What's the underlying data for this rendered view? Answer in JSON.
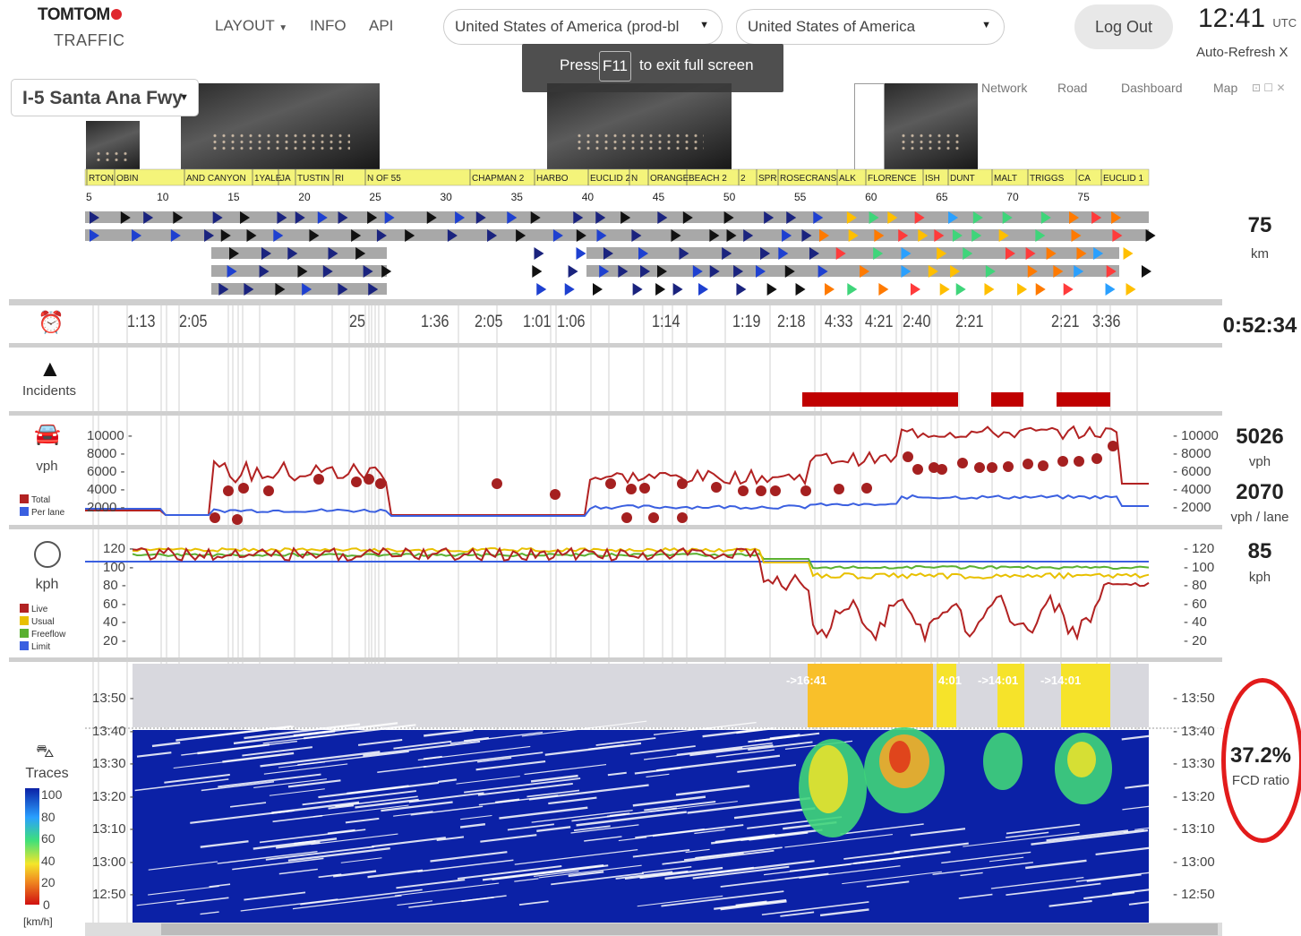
{
  "header": {
    "logo_brand": "TOMTOM",
    "logo_product": "TRAFFIC",
    "nav": {
      "layout": "LAYOUT",
      "info": "INFO",
      "api": "API"
    },
    "dataset_select": "United States of America (prod-bl",
    "region_select": "United States of America",
    "logout": "Log Out",
    "clock_time": "12:41",
    "clock_zone": "UTC",
    "auto_refresh": "Auto-Refresh X"
  },
  "toast": {
    "press": "Press",
    "key": "F11",
    "message": "to exit full screen"
  },
  "road_select": "I-5 Santa Ana Fwy",
  "view_tabs": [
    "Network",
    "Road",
    "Dashboard",
    "Map"
  ],
  "road_panel": {
    "length_value": "75",
    "length_unit": "km",
    "segments": [
      "RTON",
      "OBIN",
      "AND CANYON",
      "1YALE",
      "JA",
      "TUSTIN",
      "RI",
      "N OF 55",
      "CHAPMAN 2",
      "HARBO",
      "EUCLID 2",
      "N",
      "ORANGE",
      "BEACH 2",
      "2",
      "SPR",
      "ROSECRANS",
      "ALK",
      "FLORENCE",
      "ISH",
      "DUNT",
      "MALT",
      "TRIGGS",
      "CA",
      "EUCLID 1"
    ],
    "km_ticks": [
      "5",
      "10",
      "15",
      "20",
      "25",
      "30",
      "35",
      "40",
      "45",
      "50",
      "55",
      "60",
      "65",
      "70",
      "75"
    ]
  },
  "duration_panel": {
    "total": "0:52:34",
    "labels": [
      "1:13",
      "2:05",
      "25",
      "1:36",
      "2:05",
      "1:01",
      "1:06",
      "1:14",
      "1:19",
      "2:18",
      "4:33",
      "4:21",
      "2:40",
      "2:21",
      "2:21",
      "3:36"
    ]
  },
  "incidents_panel": {
    "label": "Incidents"
  },
  "volume_panel": {
    "unit": "vph",
    "total_value": "5026",
    "total_unit": "vph",
    "per_lane_value": "2070",
    "per_lane_unit": "vph / lane",
    "legend": [
      {
        "name": "Total",
        "color": "#b22222"
      },
      {
        "name": "Per lane",
        "color": "#3a5fe0"
      }
    ],
    "y_ticks": [
      "10000",
      "8000",
      "6000",
      "4000",
      "2000"
    ]
  },
  "speed_panel": {
    "unit": "kph",
    "value": "85",
    "value_unit": "kph",
    "legend": [
      {
        "name": "Live",
        "color": "#b22222"
      },
      {
        "name": "Usual",
        "color": "#e8c000"
      },
      {
        "name": "Freeflow",
        "color": "#5ab030"
      },
      {
        "name": "Limit",
        "color": "#3a5fe0"
      }
    ],
    "y_ticks": [
      "120",
      "100",
      "80",
      "60",
      "40",
      "20"
    ]
  },
  "traces_panel": {
    "label": "Traces",
    "fcd_value": "37.2%",
    "fcd_label": "FCD ratio",
    "time_ticks": [
      "13:50",
      "13:40",
      "13:30",
      "13:20",
      "13:10",
      "13:00",
      "12:50"
    ],
    "forecast_labels": [
      "->16:41",
      "4:01",
      "->14:01",
      "->14:01"
    ],
    "color_scale": [
      "100",
      "80",
      "60",
      "40",
      "20",
      "0"
    ],
    "scale_unit": "[km/h]"
  }
}
